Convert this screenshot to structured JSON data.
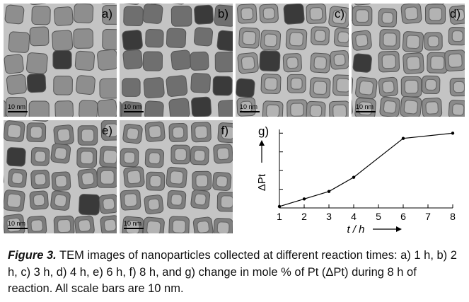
{
  "panels": [
    {
      "label": "a)",
      "scale_text": "10 nm",
      "shade": "#8e8e8e",
      "style": "solid"
    },
    {
      "label": "b)",
      "scale_text": "10 nm",
      "shade": "#6f6f6f",
      "style": "solid"
    },
    {
      "label": "c)",
      "scale_text": "10 nm",
      "shade": "#909090",
      "style": "hollow"
    },
    {
      "label": "d)",
      "scale_text": "10 nm",
      "shade": "#8a8a8a",
      "style": "hollow"
    },
    {
      "label": "e)",
      "scale_text": "10 nm",
      "shade": "#7c7c7c",
      "style": "hollow"
    },
    {
      "label": "f)",
      "scale_text": "10 nm",
      "shade": "#7f7f7f",
      "style": "hollow"
    }
  ],
  "chart_data": {
    "type": "line",
    "panel_label": "g)",
    "x": [
      1,
      2,
      3,
      4,
      6,
      8
    ],
    "y": [
      0.02,
      0.12,
      0.22,
      0.41,
      0.93,
      1.0
    ],
    "xlim": [
      1,
      8
    ],
    "ylim": [
      0,
      1.05
    ],
    "xticks": [
      "1",
      "2",
      "3",
      "4",
      "5",
      "6",
      "7",
      "8"
    ],
    "xlabel": "t / h",
    "ylabel": "ΔPt",
    "show_y_tick_labels": false,
    "grid": false
  },
  "caption": {
    "figure": "Figure 3.",
    "text": " TEM images of nanoparticles collected at different reaction times: a) 1 h, b) 2 h, c) 3 h, d) 4 h, e) 6 h, f) 8 h, and g) change in mole % of Pt (ΔPt) during 8 h of reaction. All scale bars are 10 nm."
  }
}
